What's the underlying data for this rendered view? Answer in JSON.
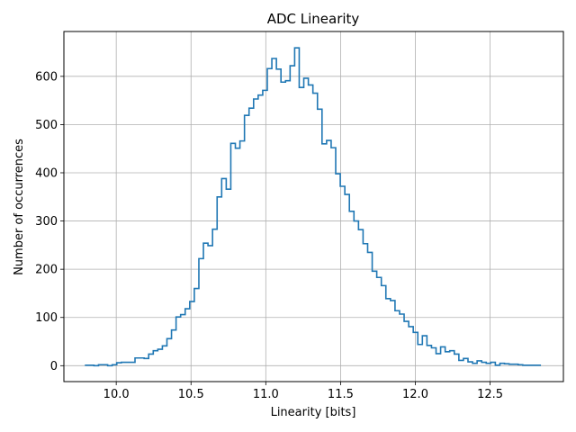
{
  "chart_data": {
    "type": "histogram-step",
    "title": "ADC Linearity",
    "xlabel": "Linearity [bits]",
    "ylabel": "Number of occurrences",
    "xlim": [
      9.65,
      12.99
    ],
    "ylim": [
      -33,
      693
    ],
    "xticks": [
      10.0,
      10.5,
      11.0,
      11.5,
      12.0,
      12.5
    ],
    "xtick_labels": [
      "10.0",
      "10.5",
      "11.0",
      "11.5",
      "12.0",
      "12.5"
    ],
    "yticks": [
      0,
      100,
      200,
      300,
      400,
      500,
      600
    ],
    "ytick_labels": [
      "0",
      "100",
      "200",
      "300",
      "400",
      "500",
      "600"
    ],
    "grid": true,
    "series_color": "#1f77b4",
    "x_start": 9.79,
    "x_end": 12.84,
    "bin_count": 100,
    "counts": [
      1,
      1,
      0,
      2,
      2,
      0,
      2,
      6,
      7,
      7,
      7,
      16,
      16,
      15,
      24,
      31,
      34,
      41,
      56,
      74,
      101,
      106,
      118,
      133,
      160,
      222,
      254,
      249,
      283,
      350,
      388,
      366,
      461,
      451,
      466,
      519,
      534,
      553,
      561,
      571,
      616,
      637,
      615,
      588,
      591,
      622,
      659,
      577,
      596,
      582,
      565,
      532,
      460,
      467,
      452,
      398,
      372,
      355,
      320,
      300,
      282,
      253,
      235,
      196,
      183,
      166,
      139,
      135,
      114,
      107,
      92,
      81,
      69,
      44,
      62,
      42,
      37,
      25,
      39,
      29,
      31,
      24,
      11,
      15,
      8,
      5,
      10,
      7,
      5,
      7,
      1,
      5,
      4,
      3,
      3,
      2,
      1,
      1,
      1,
      1
    ]
  }
}
